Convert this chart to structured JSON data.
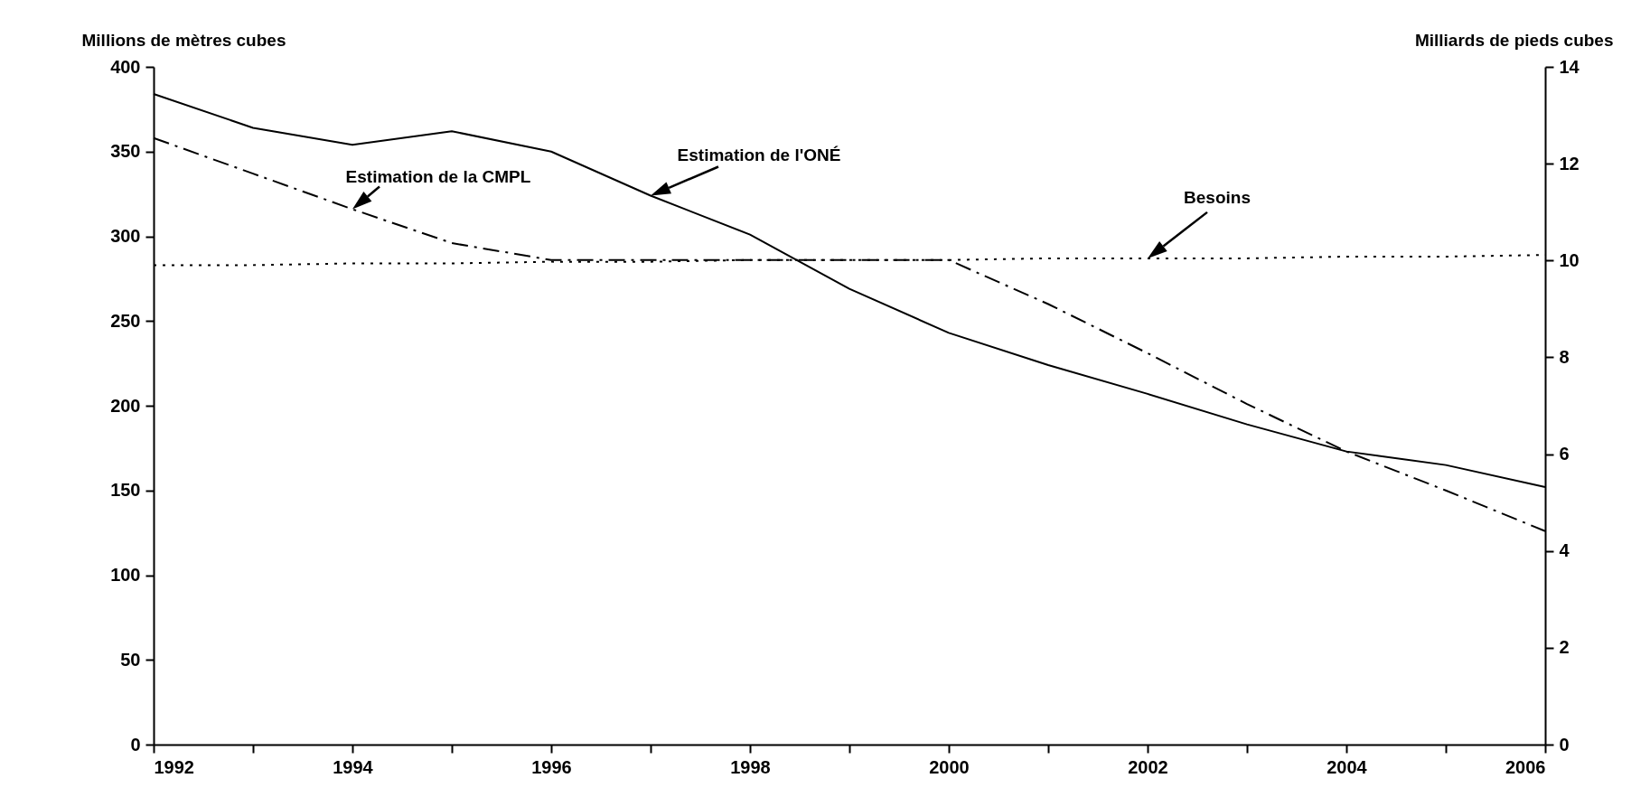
{
  "chart_data": {
    "type": "line",
    "x": [
      1992,
      1993,
      1994,
      1995,
      1996,
      1997,
      1998,
      1999,
      2000,
      2001,
      2002,
      2003,
      2004,
      2005,
      2006
    ],
    "series": [
      {
        "name": "Estimation de l'ONÉ",
        "color": "#000000",
        "line_style": "solid",
        "values": [
          384,
          364,
          354,
          362,
          350,
          324,
          301,
          269,
          243,
          224,
          207,
          189,
          173,
          165,
          152
        ]
      },
      {
        "name": "Estimation de la CMPL",
        "color": "#000000",
        "line_style": "dashed",
        "values": [
          358,
          337,
          316,
          296,
          286,
          286,
          286,
          286,
          286,
          260,
          231,
          201,
          173,
          150,
          126
        ]
      },
      {
        "name": "Besoins",
        "color": "#000000",
        "line_style": "dotted",
        "values": [
          283,
          283,
          284,
          284,
          285,
          285,
          286,
          286,
          286,
          287,
          287,
          287,
          288,
          288,
          289
        ]
      }
    ],
    "ylabel": "Millions de mètres cubes",
    "y2label": "Milliards de pieds cubes",
    "xlim": [
      1992,
      2006
    ],
    "xticks": [
      1992,
      {
        "value": 1993,
        "label": null
      },
      1994,
      {
        "value": 1995,
        "label": null
      },
      1996,
      {
        "value": 1997,
        "label": null
      },
      1998,
      {
        "value": 1999,
        "label": null
      },
      2000,
      {
        "value": 2001,
        "label": null
      },
      2002,
      {
        "value": 2003,
        "label": null
      },
      2004,
      {
        "value": 2005,
        "label": null
      },
      2006
    ],
    "ylim": [
      0,
      400
    ],
    "yticks": [
      0,
      50,
      100,
      150,
      200,
      250,
      300,
      350,
      400
    ],
    "y2lim": [
      0,
      14
    ],
    "y2ticks": [
      0,
      2,
      4,
      6,
      8,
      10,
      12,
      14
    ],
    "grid": false,
    "legend": false,
    "marker": "none"
  }
}
